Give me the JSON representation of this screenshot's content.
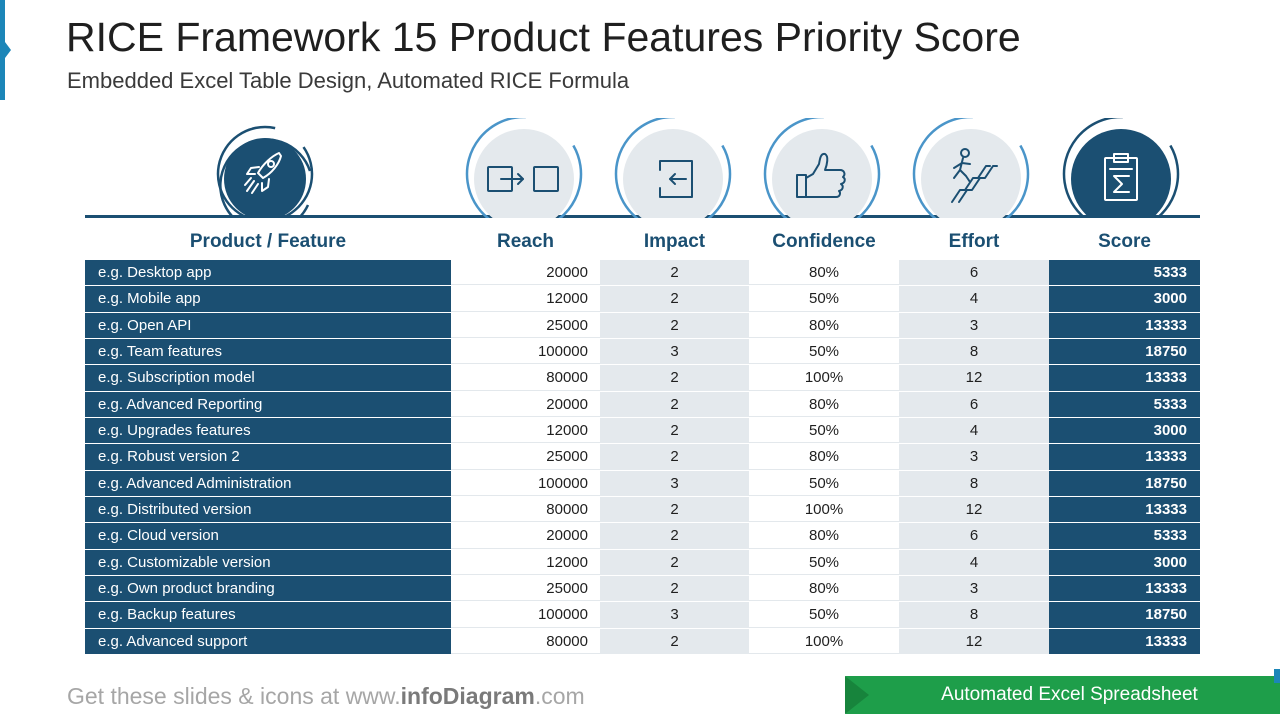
{
  "title": "RICE Framework 15 Product Features Priority Score",
  "subtitle": "Embedded Excel Table Design, Automated RICE Formula",
  "icons": [
    {
      "name": "rocket-icon",
      "style": "dark"
    },
    {
      "name": "reach-arrow-icon",
      "style": "light"
    },
    {
      "name": "impact-enter-icon",
      "style": "light"
    },
    {
      "name": "thumbs-up-icon",
      "style": "light"
    },
    {
      "name": "climbing-stairs-icon",
      "style": "light"
    },
    {
      "name": "score-sigma-icon",
      "style": "dark"
    }
  ],
  "columns": {
    "feature": "Product / Feature",
    "reach": "Reach",
    "impact": "Impact",
    "confidence": "Confidence",
    "effort": "Effort",
    "score": "Score"
  },
  "rows": [
    {
      "feature": "e.g. Desktop app",
      "reach": "20000",
      "impact": "2",
      "confidence": "80%",
      "effort": "6",
      "score": "5333"
    },
    {
      "feature": "e.g. Mobile app",
      "reach": "12000",
      "impact": "2",
      "confidence": "50%",
      "effort": "4",
      "score": "3000"
    },
    {
      "feature": "e.g. Open API",
      "reach": "25000",
      "impact": "2",
      "confidence": "80%",
      "effort": "3",
      "score": "13333"
    },
    {
      "feature": "e.g. Team features",
      "reach": "100000",
      "impact": "3",
      "confidence": "50%",
      "effort": "8",
      "score": "18750"
    },
    {
      "feature": "e.g. Subscription model",
      "reach": "80000",
      "impact": "2",
      "confidence": "100%",
      "effort": "12",
      "score": "13333"
    },
    {
      "feature": "e.g. Advanced Reporting",
      "reach": "20000",
      "impact": "2",
      "confidence": "80%",
      "effort": "6",
      "score": "5333"
    },
    {
      "feature": "e.g. Upgrades features",
      "reach": "12000",
      "impact": "2",
      "confidence": "50%",
      "effort": "4",
      "score": "3000"
    },
    {
      "feature": "e.g. Robust version 2",
      "reach": "25000",
      "impact": "2",
      "confidence": "80%",
      "effort": "3",
      "score": "13333"
    },
    {
      "feature": "e.g. Advanced Administration",
      "reach": "100000",
      "impact": "3",
      "confidence": "50%",
      "effort": "8",
      "score": "18750"
    },
    {
      "feature": "e.g. Distributed version",
      "reach": "80000",
      "impact": "2",
      "confidence": "100%",
      "effort": "12",
      "score": "13333"
    },
    {
      "feature": "e.g. Cloud version",
      "reach": "20000",
      "impact": "2",
      "confidence": "80%",
      "effort": "6",
      "score": "5333"
    },
    {
      "feature": "e.g. Customizable version",
      "reach": "12000",
      "impact": "2",
      "confidence": "50%",
      "effort": "4",
      "score": "3000"
    },
    {
      "feature": "e.g. Own product branding",
      "reach": "25000",
      "impact": "2",
      "confidence": "80%",
      "effort": "3",
      "score": "13333"
    },
    {
      "feature": "e.g. Backup features",
      "reach": "100000",
      "impact": "3",
      "confidence": "50%",
      "effort": "8",
      "score": "18750"
    },
    {
      "feature": "e.g. Advanced support",
      "reach": "80000",
      "impact": "2",
      "confidence": "100%",
      "effort": "12",
      "score": "13333"
    }
  ],
  "footer": {
    "prefix": "Get these slides & icons at www.",
    "brand": "infoDiagram",
    "suffix": ".com",
    "banner": "Automated Excel Spreadsheet"
  },
  "colors": {
    "navy": "#1b4f72",
    "accent_blue": "#1c86b8",
    "light_ring": "#4a95c9",
    "light_fill": "#e4e9ed",
    "banner_green": "#1e9e4a"
  }
}
